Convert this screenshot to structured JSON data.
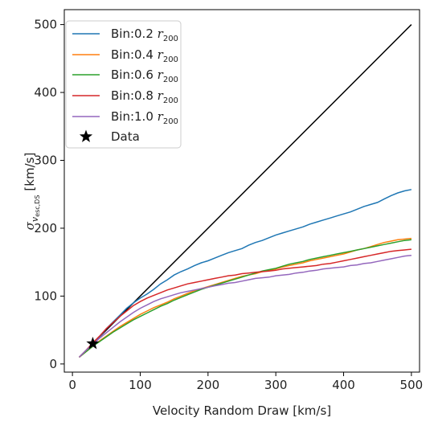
{
  "chart_data": {
    "type": "line",
    "xlabel": "Velocity Random Draw [km/s]",
    "ylabel": {
      "symbol": "σ",
      "subscript": "v",
      "subsubscript": "esc,DS",
      "unit": "[km/s]"
    },
    "xlim": [
      -12,
      512
    ],
    "ylim": [
      -12,
      522
    ],
    "xticks": [
      0,
      100,
      200,
      300,
      400,
      500
    ],
    "yticks": [
      0,
      100,
      200,
      300,
      400,
      500
    ],
    "grid": false,
    "legend_position": "top-left",
    "reference_line": {
      "x": [
        10,
        500
      ],
      "y": [
        10,
        500
      ],
      "color": "#000000"
    },
    "series": [
      {
        "name": "Bin:0.2 r200",
        "label_main": "Bin:0.2 ",
        "label_r": "r",
        "label_sub": "200",
        "color": "#1f77b4",
        "x": [
          10,
          20,
          30,
          40,
          50,
          60,
          70,
          80,
          90,
          100,
          110,
          120,
          130,
          140,
          150,
          160,
          170,
          180,
          190,
          200,
          210,
          220,
          230,
          240,
          250,
          260,
          270,
          280,
          290,
          300,
          310,
          320,
          330,
          340,
          350,
          360,
          370,
          380,
          390,
          400,
          410,
          420,
          430,
          440,
          450,
          460,
          470,
          480,
          490,
          500
        ],
        "y": [
          10,
          20,
          30,
          40,
          52,
          62,
          72,
          82,
          90,
          97,
          103,
          110,
          118,
          124,
          131,
          136,
          140,
          145,
          149,
          152,
          156,
          160,
          164,
          167,
          170,
          175,
          179,
          182,
          186,
          190,
          193,
          196,
          199,
          202,
          206,
          209,
          212,
          215,
          218,
          221,
          224,
          228,
          232,
          235,
          238,
          243,
          248,
          252,
          255,
          257
        ]
      },
      {
        "name": "Bin:0.4 r200",
        "label_main": "Bin:0.4 ",
        "label_r": "r",
        "label_sub": "200",
        "color": "#ff7f0e",
        "x": [
          10,
          20,
          30,
          40,
          50,
          60,
          70,
          80,
          90,
          100,
          110,
          120,
          130,
          140,
          150,
          160,
          170,
          180,
          190,
          200,
          210,
          220,
          230,
          240,
          250,
          260,
          270,
          280,
          290,
          300,
          310,
          320,
          330,
          340,
          350,
          360,
          370,
          380,
          390,
          400,
          410,
          420,
          430,
          440,
          450,
          460,
          470,
          480,
          490,
          500
        ],
        "y": [
          10,
          18,
          26,
          34,
          41,
          48,
          55,
          61,
          67,
          73,
          78,
          83,
          87,
          91,
          96,
          100,
          104,
          108,
          111,
          114,
          117,
          120,
          123,
          126,
          129,
          131,
          133,
          136,
          138,
          140,
          143,
          145,
          147,
          149,
          152,
          154,
          156,
          158,
          160,
          162,
          165,
          168,
          170,
          173,
          176,
          179,
          181,
          183,
          184,
          185
        ]
      },
      {
        "name": "Bin:0.6 r200",
        "label_main": "Bin:0.6 ",
        "label_r": "r",
        "label_sub": "200",
        "color": "#2ca02c",
        "x": [
          10,
          20,
          30,
          40,
          50,
          60,
          70,
          80,
          90,
          100,
          110,
          120,
          130,
          140,
          150,
          160,
          170,
          180,
          190,
          200,
          210,
          220,
          230,
          240,
          250,
          260,
          270,
          280,
          290,
          300,
          310,
          320,
          330,
          340,
          350,
          360,
          370,
          380,
          390,
          400,
          410,
          420,
          430,
          440,
          450,
          460,
          470,
          480,
          490,
          500
        ],
        "y": [
          10,
          18,
          26,
          33,
          40,
          47,
          53,
          59,
          65,
          70,
          75,
          80,
          85,
          89,
          94,
          98,
          102,
          106,
          110,
          113,
          116,
          119,
          122,
          125,
          128,
          131,
          134,
          137,
          139,
          141,
          144,
          147,
          149,
          151,
          154,
          156,
          158,
          160,
          162,
          164,
          166,
          168,
          170,
          172,
          174,
          176,
          178,
          180,
          182,
          183
        ]
      },
      {
        "name": "Bin:0.8 r200",
        "label_main": "Bin:0.8 ",
        "label_r": "r",
        "label_sub": "200",
        "color": "#d62728",
        "x": [
          10,
          20,
          30,
          40,
          50,
          60,
          70,
          80,
          90,
          100,
          110,
          120,
          130,
          140,
          150,
          160,
          170,
          180,
          190,
          200,
          210,
          220,
          230,
          240,
          250,
          260,
          270,
          280,
          290,
          300,
          310,
          320,
          330,
          340,
          350,
          360,
          370,
          380,
          390,
          400,
          410,
          420,
          430,
          440,
          450,
          460,
          470,
          480,
          490,
          500
        ],
        "y": [
          10,
          20,
          31,
          41,
          52,
          61,
          70,
          78,
          86,
          92,
          97,
          101,
          105,
          109,
          112,
          115,
          118,
          120,
          122,
          124,
          126,
          128,
          130,
          131,
          133,
          134,
          135,
          136,
          137,
          138,
          140,
          141,
          142,
          143,
          144,
          145,
          147,
          148,
          150,
          152,
          154,
          156,
          158,
          160,
          162,
          164,
          166,
          167,
          168,
          169
        ]
      },
      {
        "name": "Bin:1.0 r200",
        "label_main": "Bin:1.0 ",
        "label_r": "r",
        "label_sub": "200",
        "color": "#9467bd",
        "x": [
          10,
          20,
          30,
          40,
          50,
          60,
          70,
          80,
          90,
          100,
          110,
          120,
          130,
          140,
          150,
          160,
          170,
          180,
          190,
          200,
          210,
          220,
          230,
          240,
          250,
          260,
          270,
          280,
          290,
          300,
          310,
          320,
          330,
          340,
          350,
          360,
          370,
          380,
          390,
          400,
          410,
          420,
          430,
          440,
          450,
          460,
          470,
          480,
          490,
          500
        ],
        "y": [
          10,
          20,
          29,
          38,
          46,
          54,
          62,
          69,
          76,
          82,
          87,
          92,
          96,
          99,
          102,
          105,
          107,
          109,
          111,
          113,
          115,
          117,
          119,
          120,
          122,
          124,
          126,
          127,
          128,
          130,
          131,
          132,
          134,
          135,
          137,
          138,
          140,
          141,
          142,
          143,
          145,
          146,
          148,
          149,
          151,
          153,
          155,
          157,
          159,
          160
        ]
      }
    ],
    "data_point": {
      "name": "Data",
      "x": 30,
      "y": 30,
      "marker": "star",
      "color": "#000000"
    }
  }
}
